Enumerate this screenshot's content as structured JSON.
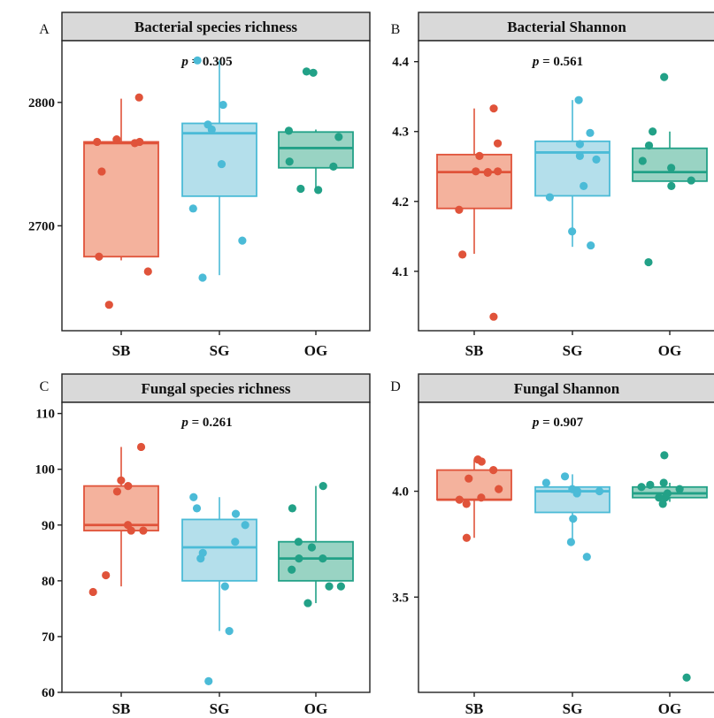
{
  "chart_data": [
    {
      "type": "box",
      "panel_tag": "A",
      "title": "Bacterial species richness",
      "annotation": "p = 0.305",
      "p_symbol": "p",
      "p_value": "= 0.305",
      "categories": [
        "SB",
        "SG",
        "OG"
      ],
      "colors": [
        "#e0533a",
        "#4bbbd7",
        "#22a187"
      ],
      "fills": [
        "#f4b29d",
        "#b4dfeb",
        "#99d3c3"
      ],
      "ylim": [
        2615,
        2850
      ],
      "yticks": [
        2700,
        2800
      ],
      "ytick_labels": [
        "2700",
        "2800"
      ],
      "boxes": [
        {
          "min": 2672,
          "q1": 2675,
          "median": 2767,
          "q3": 2768,
          "max": 2803
        },
        {
          "min": 2660,
          "q1": 2724,
          "median": 2775,
          "q3": 2783,
          "max": 2834
        },
        {
          "min": 2730,
          "q1": 2747,
          "median": 2763,
          "q3": 2776,
          "max": 2778
        }
      ],
      "points": [
        [
          2767,
          2768,
          2770,
          2768,
          2744,
          2804,
          2675,
          2663,
          2636
        ],
        [
          2798,
          2778,
          2782,
          2750,
          2834,
          2714,
          2688,
          2658
        ],
        [
          2824,
          2825,
          2772,
          2752,
          2748,
          2777,
          2729,
          2730
        ]
      ]
    },
    {
      "type": "box",
      "panel_tag": "B",
      "title": "Bacterial Shannon",
      "annotation": "p = 0.561",
      "p_symbol": "p",
      "p_value": "= 0.561",
      "categories": [
        "SB",
        "SG",
        "OG"
      ],
      "colors": [
        "#e0533a",
        "#4bbbd7",
        "#22a187"
      ],
      "fills": [
        "#f4b29d",
        "#b4dfeb",
        "#99d3c3"
      ],
      "ylim": [
        4.015,
        4.43
      ],
      "yticks": [
        4.1,
        4.2,
        4.3,
        4.4
      ],
      "ytick_labels": [
        "4.1",
        "4.2",
        "4.3",
        "4.4"
      ],
      "boxes": [
        {
          "min": 4.125,
          "q1": 4.19,
          "median": 4.242,
          "q3": 4.267,
          "max": 4.333
        },
        {
          "min": 4.135,
          "q1": 4.208,
          "median": 4.27,
          "q3": 4.286,
          "max": 4.345
        },
        {
          "min": 4.228,
          "q1": 4.229,
          "median": 4.242,
          "q3": 4.276,
          "max": 4.3
        }
      ],
      "points": [
        [
          4.265,
          4.243,
          4.242,
          4.241,
          4.243,
          4.333,
          4.283,
          4.188,
          4.124,
          4.035
        ],
        [
          4.345,
          4.298,
          4.282,
          4.265,
          4.26,
          4.222,
          4.206,
          4.157,
          4.137
        ],
        [
          4.378,
          4.3,
          4.28,
          4.258,
          4.248,
          4.23,
          4.222,
          4.113
        ]
      ]
    },
    {
      "type": "box",
      "panel_tag": "C",
      "title": "Fungal species richness",
      "annotation": "p = 0.261",
      "p_symbol": "p",
      "p_value": "= 0.261",
      "categories": [
        "SB",
        "SG",
        "OG"
      ],
      "colors": [
        "#e0533a",
        "#4bbbd7",
        "#22a187"
      ],
      "fills": [
        "#f4b29d",
        "#b4dfeb",
        "#99d3c3"
      ],
      "ylim": [
        60,
        112
      ],
      "yticks": [
        60,
        70,
        80,
        90,
        100,
        110
      ],
      "ytick_labels": [
        "60",
        "70",
        "80",
        "90",
        "100",
        "110"
      ],
      "boxes": [
        {
          "min": 79,
          "q1": 89,
          "median": 90,
          "q3": 97,
          "max": 104
        },
        {
          "min": 71,
          "q1": 80,
          "median": 86,
          "q3": 91,
          "max": 95
        },
        {
          "min": 76,
          "q1": 80,
          "median": 84,
          "q3": 87,
          "max": 97
        }
      ],
      "points": [
        [
          104,
          98,
          97,
          96,
          90,
          89,
          89,
          81,
          78
        ],
        [
          95,
          93,
          92,
          90,
          87,
          85,
          84,
          79,
          71,
          62
        ],
        [
          97,
          93,
          87,
          86,
          84,
          84,
          82,
          79,
          79,
          76
        ]
      ]
    },
    {
      "type": "box",
      "panel_tag": "D",
      "title": "Fungal Shannon",
      "annotation": "p = 0.907",
      "p_symbol": "p",
      "p_value": "= 0.907",
      "categories": [
        "SB",
        "SG",
        "OG"
      ],
      "colors": [
        "#e0533a",
        "#4bbbd7",
        "#22a187"
      ],
      "fills": [
        "#f4b29d",
        "#b4dfeb",
        "#99d3c3"
      ],
      "ylim": [
        3.05,
        4.42
      ],
      "yticks": [
        3.5,
        4.0
      ],
      "ytick_labels": [
        "3.5",
        "4.0"
      ],
      "boxes": [
        {
          "min": 3.78,
          "q1": 3.96,
          "median": 3.96,
          "q3": 4.1,
          "max": 4.15
        },
        {
          "min": 3.76,
          "q1": 3.9,
          "median": 4.0,
          "q3": 4.02,
          "max": 4.08
        },
        {
          "min": 3.95,
          "q1": 3.97,
          "median": 3.99,
          "q3": 4.02,
          "max": 4.04
        }
      ],
      "points": [
        [
          4.15,
          4.14,
          4.1,
          4.06,
          4.01,
          3.97,
          3.96,
          3.94,
          3.78
        ],
        [
          4.07,
          4.04,
          4.01,
          4.0,
          4.0,
          3.99,
          3.87,
          3.76,
          3.69
        ],
        [
          4.17,
          4.04,
          4.03,
          4.02,
          4.01,
          3.99,
          3.97,
          3.97,
          3.94,
          3.12
        ]
      ]
    }
  ]
}
